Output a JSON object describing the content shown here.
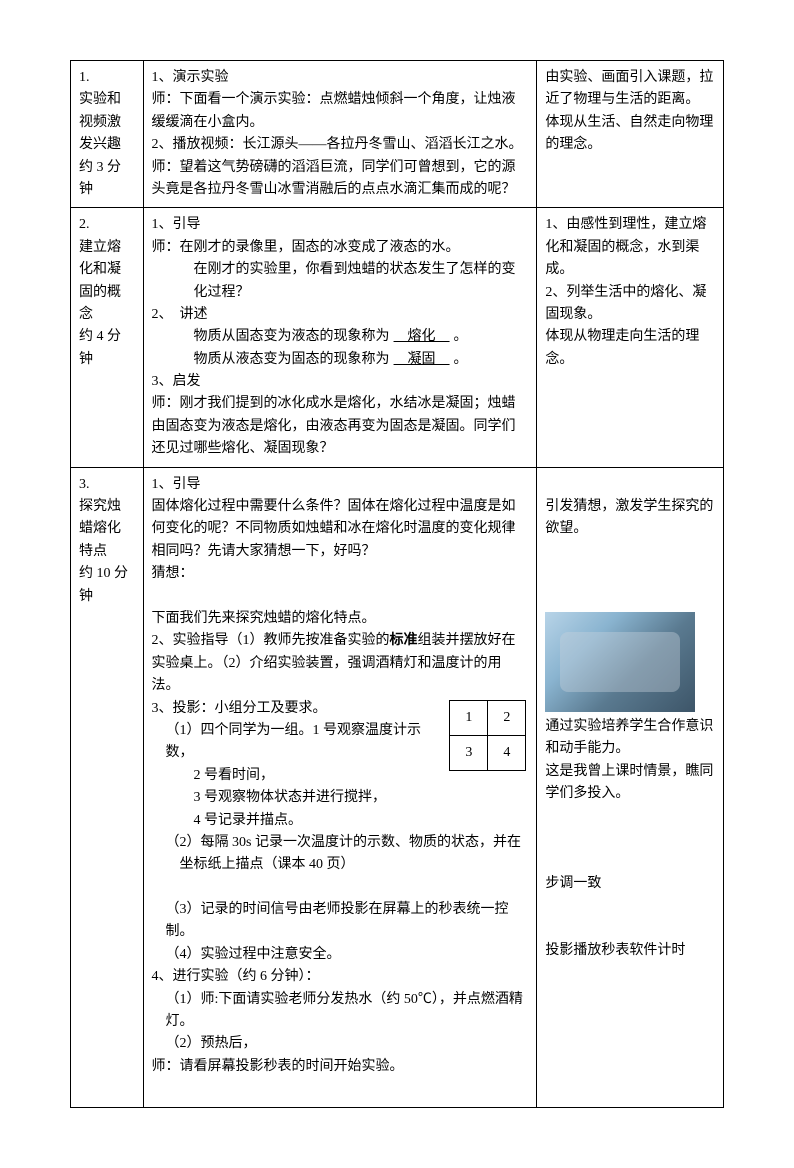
{
  "rows": [
    {
      "label": "1.\n实验和视频激发兴趣\n约 3 分钟",
      "content": {
        "lines": [
          "1、演示实验",
          "师：下面看一个演示实验：点燃蜡烛倾斜一个角度，让烛液缓缓滴在小盒内。",
          "2、播放视频：长江源头——各拉丹冬雪山、滔滔长江之水。",
          "师：望着这气势磅礴的滔滔巨流，同学们可曾想到，它的源头竟是各拉丹冬雪山冰雪消融后的点点水滴汇集而成的呢？"
        ]
      },
      "note": {
        "lines": [
          "由实验、画面引入课题，拉近了物理与生活的距离。",
          ""
        ],
        "italic": "体现从生活、自然走向物理的理念。"
      }
    },
    {
      "label": "2.\n建立熔化和凝固的概念\n约 4 分钟",
      "content": {
        "header": "1、引导",
        "t1": "师：在刚才的录像里，固态的冰变成了液态的水。",
        "t2": "在刚才的实验里，你看到烛蜡的状态发生了怎样的变化过程？",
        "h2": "2、　讲述",
        "fill1_pre": "物质从固态变为液态的现象称为",
        "fill1_blank": "　熔化　",
        "fill1_post": "。",
        "fill2_pre": "物质从液态变为固态的现象称为",
        "fill2_blank": "　凝固　",
        "fill2_post": "。",
        "h3": "3、启发",
        "t3": "师：刚才我们提到的冰化成水是熔化，水结冰是凝固；烛蜡由固态变为液态是熔化，由液态再变为固态是凝固。同学们还见过哪些熔化、凝固现象？"
      },
      "note": {
        "lines": [
          "",
          "",
          "",
          "1、由感性到理性，建立熔化和凝固的概念，水到渠成。",
          "",
          "2、列举生活中的熔化、凝固现象。"
        ],
        "italic": "体现从物理走向生活的理念。"
      }
    },
    {
      "label": "3.\n探究烛蜡熔化特点\n约 10 分钟",
      "content": {
        "h1": "1、引导",
        "p1": "固体熔化过程中需要什么条件？固体在熔化过程中温度是如何变化的呢？不同物质如烛蜡和冰在熔化时温度的变化规律相同吗？先请大家猜想一下，好吗？",
        "p2": "猜想：",
        "p3": "下面我们先来探究烛蜡的熔化特点。",
        "p4a": "2、实验指导（1）教师先按准备实验的",
        "p4b": "标准",
        "p4c": "组装并摆放好在实验桌上。（2）介绍实验装置，强调酒精灯和温度计的用法。",
        "p5": "3、投影：小组分工及要求。",
        "g1": "（1）四个同学为一组。1 号观察温度计示数，",
        "g2": "2 号看时间，",
        "g3": "3 号观察物体状态并进行搅拌，",
        "g4": "4 号记录并描点。",
        "p6": "（2）每隔 30s 记录一次温度计的示数、物质的状态，并在坐标纸上描点（课本 40 页）",
        "p7": "（3）记录的时间信号由老师投影在屏幕上的秒表统一控制。",
        "p8": "（4）实验过程中注意安全。",
        "p9": "4、进行实验（约 6 分钟）：",
        "p10": "（1）师:下面请实验老师分发热水（约 50℃），并点燃酒精灯。",
        "p11": "（2）预热后，",
        "p12": "师：请看屏幕投影秒表的时间开始实验。"
      },
      "grid": {
        "c1": "1",
        "c2": "2",
        "c3": "3",
        "c4": "4"
      },
      "note": {
        "n1": "引发猜想，激发学生探究的欲望。",
        "n2": "通过实验培养学生合作意识和动手能力。",
        "n3": "这是我曾上课时情景，瞧同学们多投入。",
        "n4": "步调一致",
        "n5": "投影播放秒表软件计时"
      }
    }
  ]
}
